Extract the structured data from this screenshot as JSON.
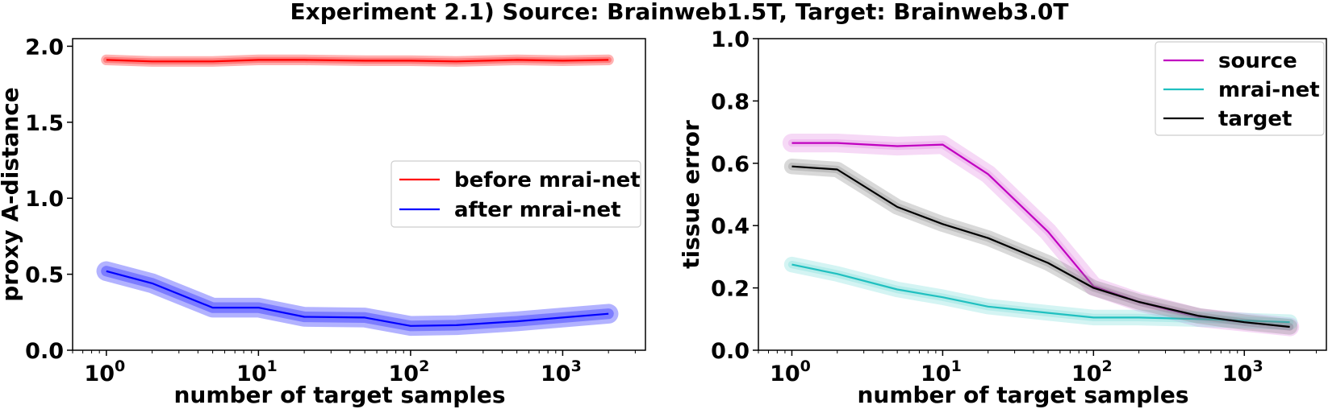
{
  "title": "Experiment 2.1) Source: Brainweb1.5T, Target: Brainweb3.0T",
  "chart_data": [
    {
      "type": "line",
      "xlabel": "number of target samples",
      "ylabel": "proxy A-distance",
      "xscale": "log",
      "xlim": [
        0.6,
        3500
      ],
      "ylim": [
        0.0,
        2.05
      ],
      "xticks": [
        1,
        10,
        100,
        1000
      ],
      "xtick_labels": [
        {
          "base": "10",
          "exp": "0"
        },
        {
          "base": "10",
          "exp": "1"
        },
        {
          "base": "10",
          "exp": "2"
        },
        {
          "base": "10",
          "exp": "3"
        }
      ],
      "yticks": [
        "0.0",
        "0.5",
        "1.0",
        "1.5",
        "2.0"
      ],
      "x": [
        1,
        2,
        5,
        10,
        20,
        50,
        100,
        200,
        500,
        1000,
        2000
      ],
      "legend_position": "center-right",
      "grid": false,
      "series": [
        {
          "name": "before mrai-net",
          "color": "#ff0000",
          "values": [
            1.91,
            1.9,
            1.9,
            1.91,
            1.91,
            1.905,
            1.905,
            1.9,
            1.91,
            1.905,
            1.91
          ],
          "band_inner": 0.02,
          "band_outer": 0.035
        },
        {
          "name": "after mrai-net",
          "color": "#0000ff",
          "values": [
            0.52,
            0.44,
            0.28,
            0.28,
            0.22,
            0.215,
            0.16,
            0.165,
            0.19,
            0.215,
            0.24
          ],
          "band_inner": 0.035,
          "band_outer": 0.065
        }
      ]
    },
    {
      "type": "line",
      "xlabel": "number of target samples",
      "ylabel": "tissue error",
      "xscale": "log",
      "xlim": [
        0.6,
        3500
      ],
      "ylim": [
        0.0,
        1.0
      ],
      "xticks": [
        1,
        10,
        100,
        1000
      ],
      "xtick_labels": [
        {
          "base": "10",
          "exp": "0"
        },
        {
          "base": "10",
          "exp": "1"
        },
        {
          "base": "10",
          "exp": "2"
        },
        {
          "base": "10",
          "exp": "3"
        }
      ],
      "yticks": [
        "0.0",
        "0.2",
        "0.4",
        "0.6",
        "0.8",
        "1.0"
      ],
      "x": [
        1,
        2,
        5,
        10,
        20,
        50,
        100,
        200,
        500,
        1000,
        2000
      ],
      "legend_position": "top-right",
      "grid": false,
      "series": [
        {
          "name": "source",
          "color": "#c000c0",
          "band_color": "#e080e0",
          "values": [
            0.665,
            0.665,
            0.655,
            0.66,
            0.565,
            0.38,
            0.205,
            0.155,
            0.105,
            0.09,
            0.075
          ],
          "band_inner": 0.012,
          "band_outer": 0.03
        },
        {
          "name": "mrai-net",
          "color": "#20c0c0",
          "band_color": "#70dcd6",
          "values": [
            0.275,
            0.245,
            0.195,
            0.17,
            0.14,
            0.12,
            0.105,
            0.105,
            0.1,
            0.095,
            0.09
          ],
          "band_inner": 0.012,
          "band_outer": 0.025
        },
        {
          "name": "target",
          "color": "#000000",
          "band_color": "#808080",
          "values": [
            0.59,
            0.58,
            0.46,
            0.405,
            0.36,
            0.28,
            0.2,
            0.155,
            0.11,
            0.09,
            0.075
          ],
          "band_inner": 0.012,
          "band_outer": 0.025
        }
      ]
    }
  ]
}
